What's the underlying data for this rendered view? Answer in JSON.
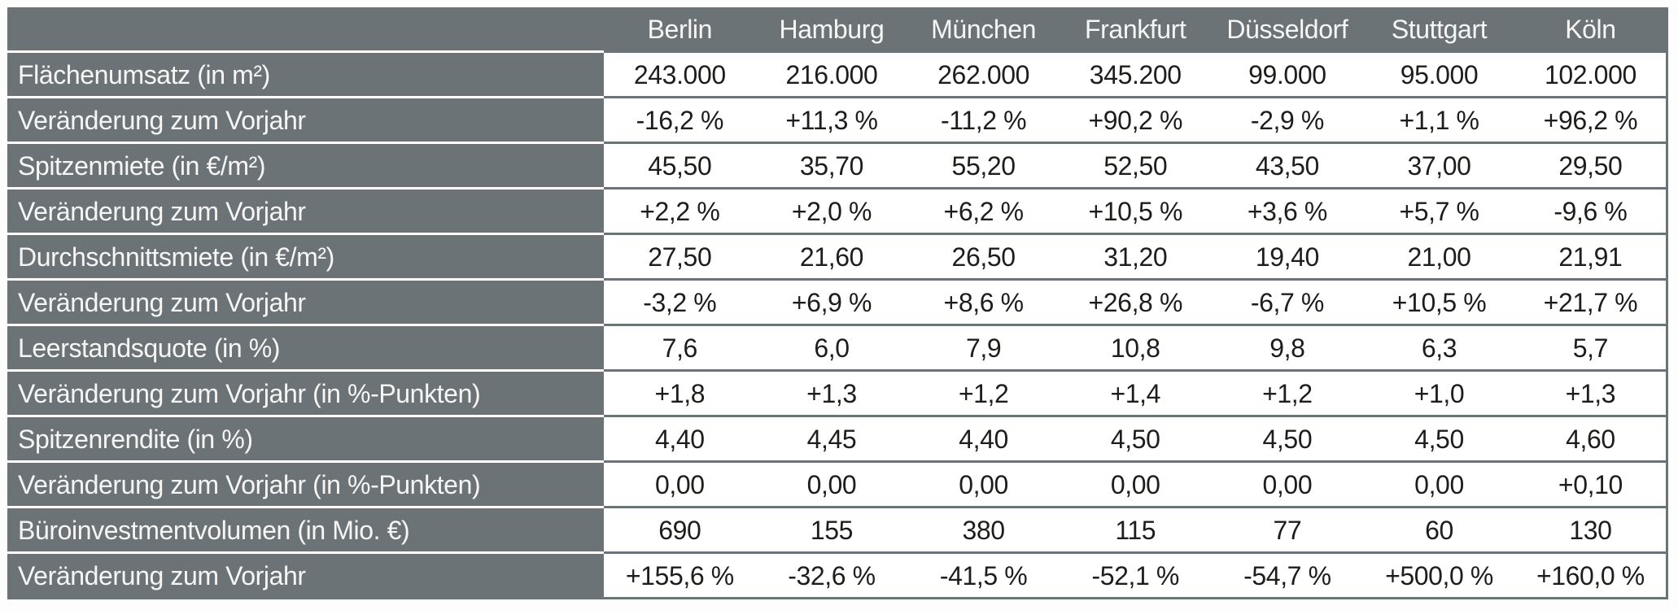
{
  "chart_data": {
    "type": "table",
    "corner_label": "",
    "columns": [
      "Berlin",
      "Hamburg",
      "München",
      "Frankfurt",
      "Düsseldorf",
      "Stuttgart",
      "Köln"
    ],
    "rows": [
      {
        "label": "Flächenumsatz (in m²)",
        "values": [
          "243.000",
          "216.000",
          "262.000",
          "345.200",
          "99.000",
          "95.000",
          "102.000"
        ]
      },
      {
        "label": "Veränderung zum Vorjahr",
        "values": [
          "-16,2 %",
          "+11,3 %",
          "-11,2 %",
          "+90,2 %",
          "-2,9 %",
          "+1,1 %",
          "+96,2 %"
        ]
      },
      {
        "label": "Spitzenmiete (in €/m²)",
        "values": [
          "45,50",
          "35,70",
          "55,20",
          "52,50",
          "43,50",
          "37,00",
          "29,50"
        ]
      },
      {
        "label": "Veränderung zum Vorjahr",
        "values": [
          "+2,2 %",
          "+2,0 %",
          "+6,2 %",
          "+10,5 %",
          "+3,6 %",
          "+5,7 %",
          "-9,6 %"
        ]
      },
      {
        "label": "Durchschnittsmiete (in €/m²)",
        "values": [
          "27,50",
          "21,60",
          "26,50",
          "31,20",
          "19,40",
          "21,00",
          "21,91"
        ]
      },
      {
        "label": "Veränderung zum Vorjahr",
        "values": [
          "-3,2 %",
          "+6,9 %",
          "+8,6 %",
          "+26,8 %",
          "-6,7 %",
          "+10,5 %",
          "+21,7 %"
        ]
      },
      {
        "label": "Leerstandsquote (in %)",
        "values": [
          "7,6",
          "6,0",
          "7,9",
          "10,8",
          "9,8",
          "6,3",
          "5,7"
        ]
      },
      {
        "label": "Veränderung zum Vorjahr (in %-Punkten)",
        "values": [
          "+1,8",
          "+1,3",
          "+1,2",
          "+1,4",
          "+1,2",
          "+1,0",
          "+1,3"
        ]
      },
      {
        "label": "Spitzenrendite (in %)",
        "values": [
          "4,40",
          "4,45",
          "4,40",
          "4,50",
          "4,50",
          "4,50",
          "4,60"
        ]
      },
      {
        "label": "Veränderung zum Vorjahr (in %-Punkten)",
        "values": [
          "0,00",
          "0,00",
          "0,00",
          "0,00",
          "0,00",
          "0,00",
          "+0,10"
        ]
      },
      {
        "label": "Büroinvestmentvolumen (in Mio. €)",
        "values": [
          "690",
          "155",
          "380",
          "115",
          "77",
          "60",
          "130"
        ]
      },
      {
        "label": "Veränderung zum Vorjahr",
        "values": [
          "+155,6 %",
          "-32,6 %",
          "-41,5 %",
          "-52,1 %",
          "-54,7 %",
          "+500,0 %",
          "+160,0 %"
        ]
      }
    ],
    "layout": {
      "grid": "horizontal-lines-only",
      "label_column_separator": "white",
      "value_alignment": "center"
    }
  },
  "colors": {
    "header_bg": "#6c7377",
    "row_label_bg": "#6c7377",
    "header_text": "#f6f6f5",
    "data_text": "#1d1d1b",
    "grid_line": "#6c7377",
    "label_row_separator": "#ffffff",
    "page_bg": "#ffffff"
  }
}
